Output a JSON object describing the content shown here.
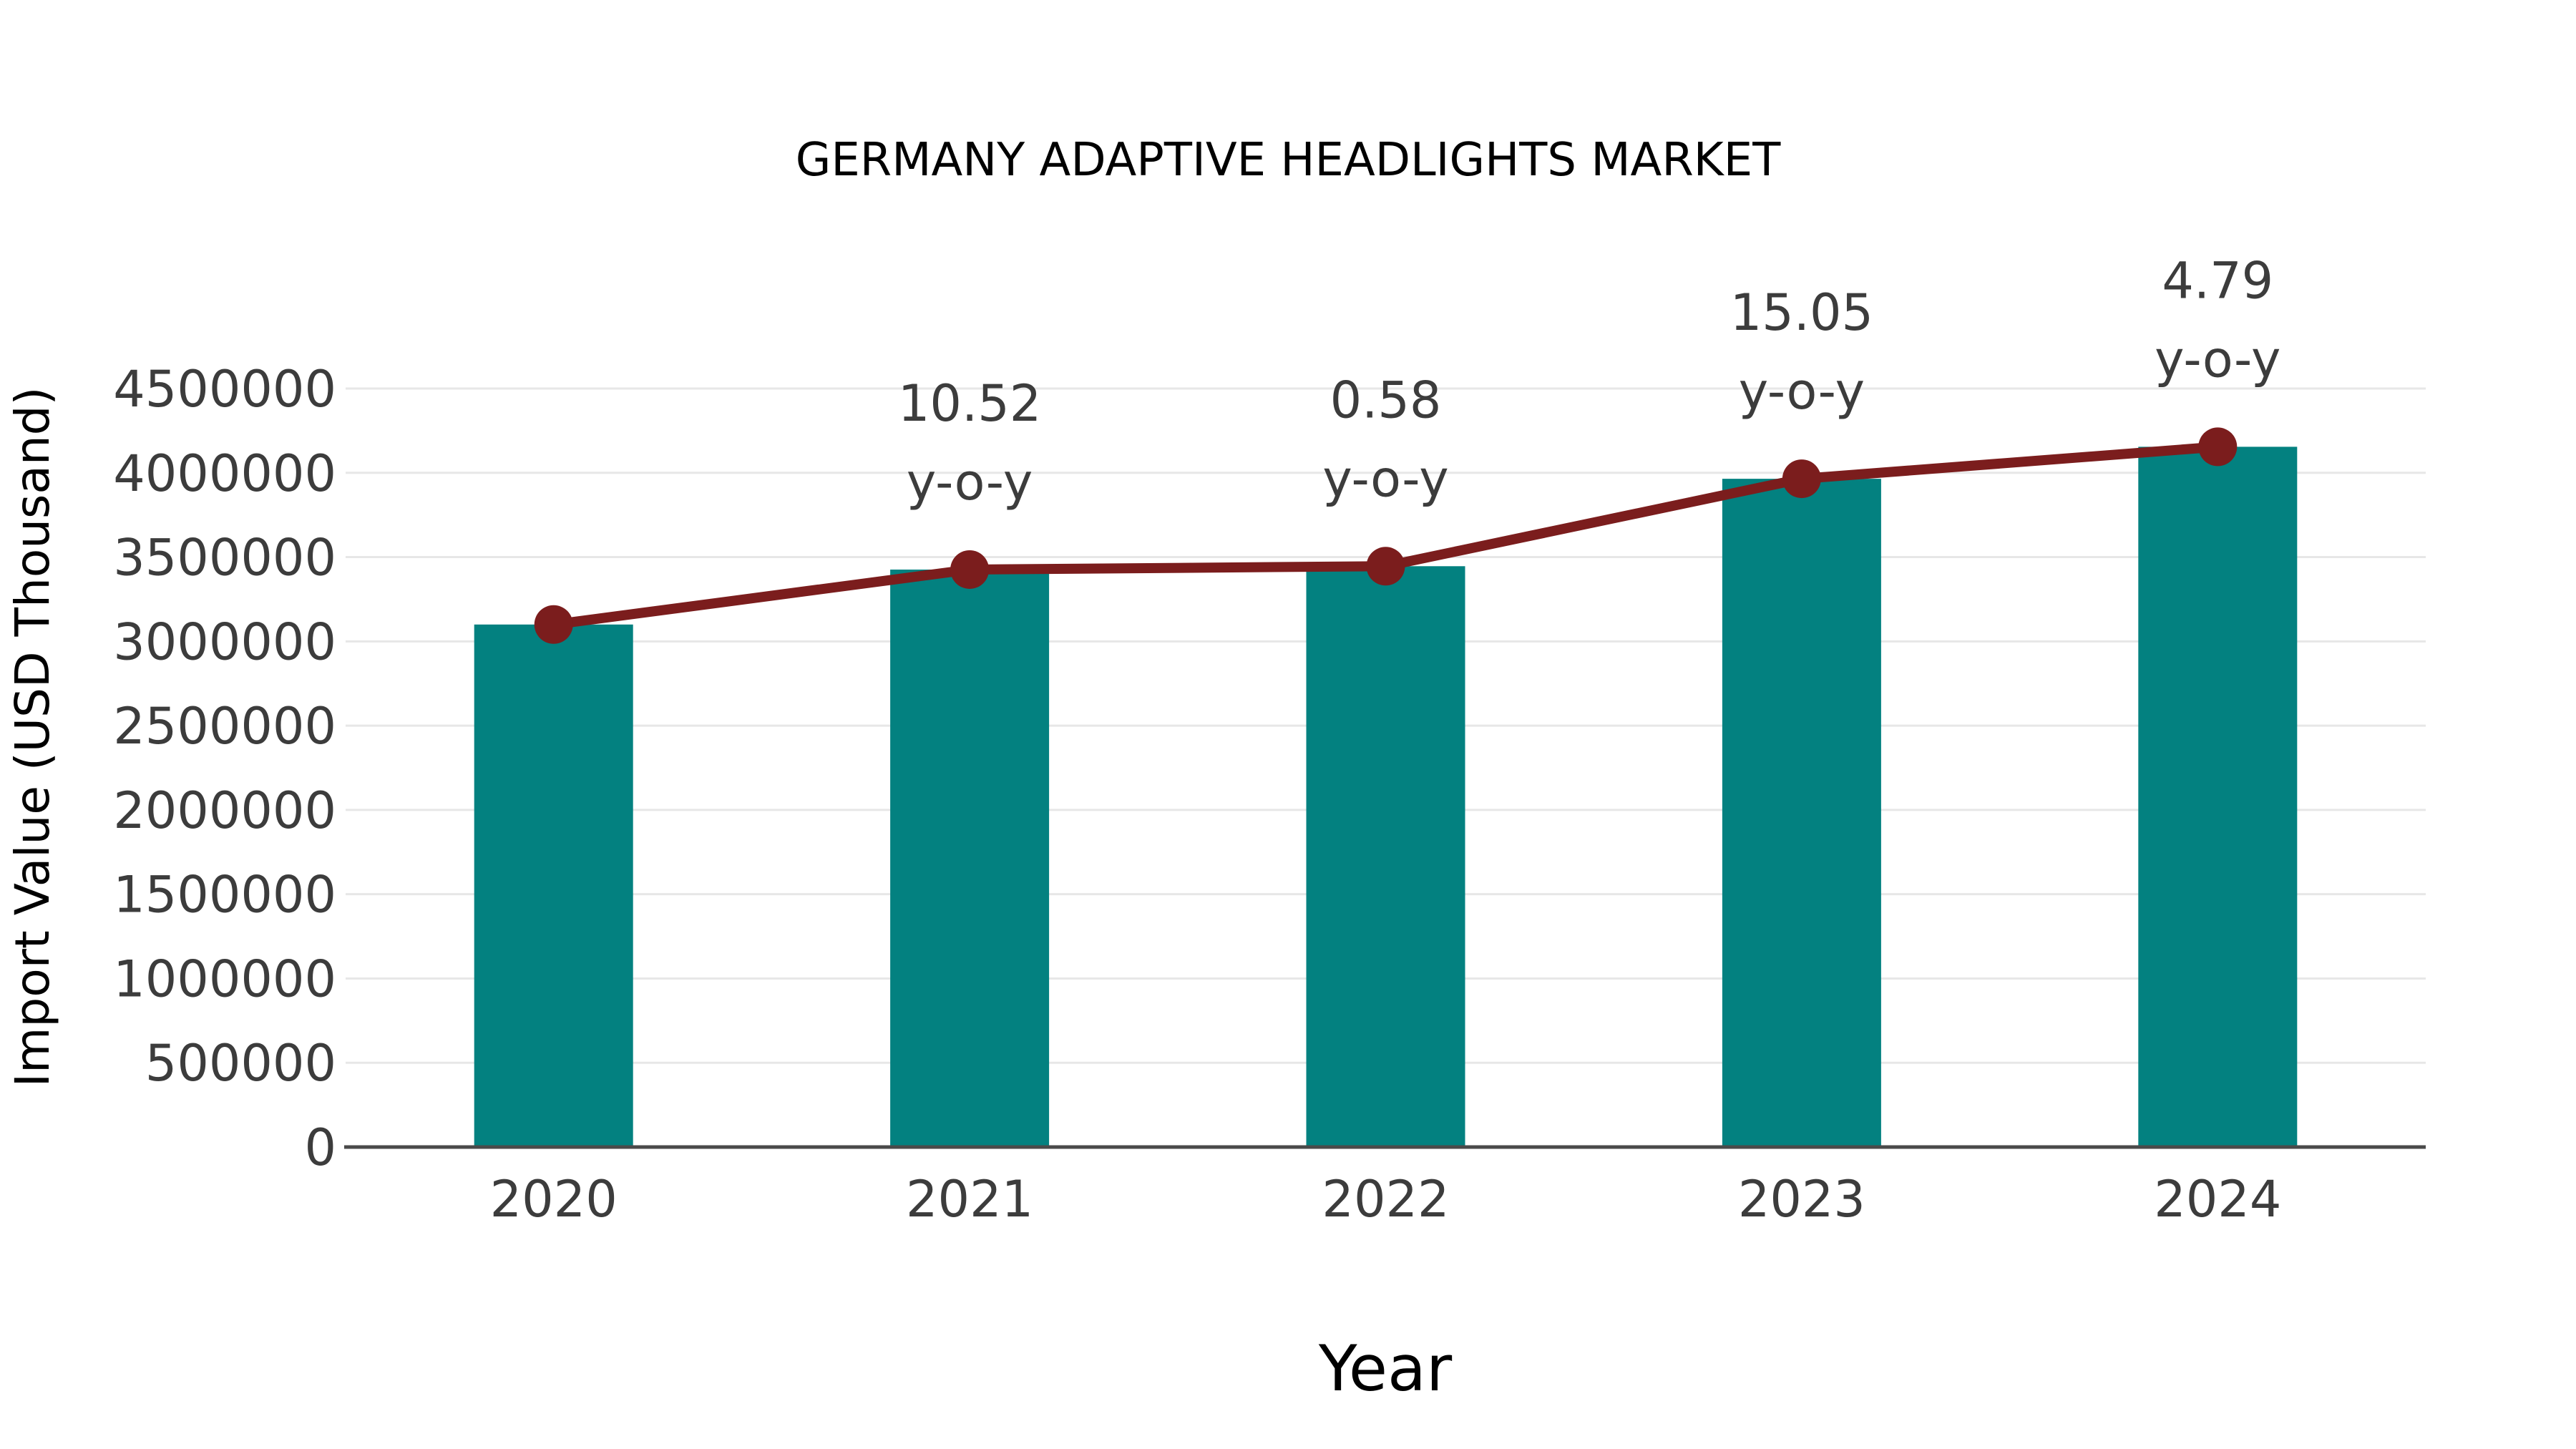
{
  "chart_data": {
    "type": "bar",
    "title": "GERMANY ADAPTIVE HEADLIGHTS MARKET",
    "xlabel": "Year",
    "ylabel": "Import Value (USD Thousand)",
    "categories": [
      "2020",
      "2021",
      "2022",
      "2023",
      "2024"
    ],
    "values": [
      3100000,
      3426000,
      3446000,
      3964600,
      4154500
    ],
    "ylim": [
      0,
      4500000
    ],
    "yticks": [
      0,
      500000,
      1000000,
      1500000,
      2000000,
      2500000,
      3000000,
      3500000,
      4000000,
      4500000
    ],
    "grid": "horizontal",
    "legend_position": "none",
    "bar_series_name": "Import Value",
    "line_overlay": {
      "name": "y-o-y growth line",
      "follows_bar_tops": true,
      "annotations": [
        {
          "category": "2021",
          "value": "10.52",
          "label": "y-o-y"
        },
        {
          "category": "2022",
          "value": "0.58",
          "label": "y-o-y"
        },
        {
          "category": "2023",
          "value": "15.05",
          "label": "y-o-y"
        },
        {
          "category": "2024",
          "value": "4.79",
          "label": "y-o-y"
        }
      ]
    },
    "colors": {
      "bar": "#038180",
      "line": "#7B1D1D",
      "text": "#3C3C3C",
      "grid": "#E7E7E7",
      "axis": "#4A4A4A",
      "background": "#FFFFFF"
    }
  }
}
